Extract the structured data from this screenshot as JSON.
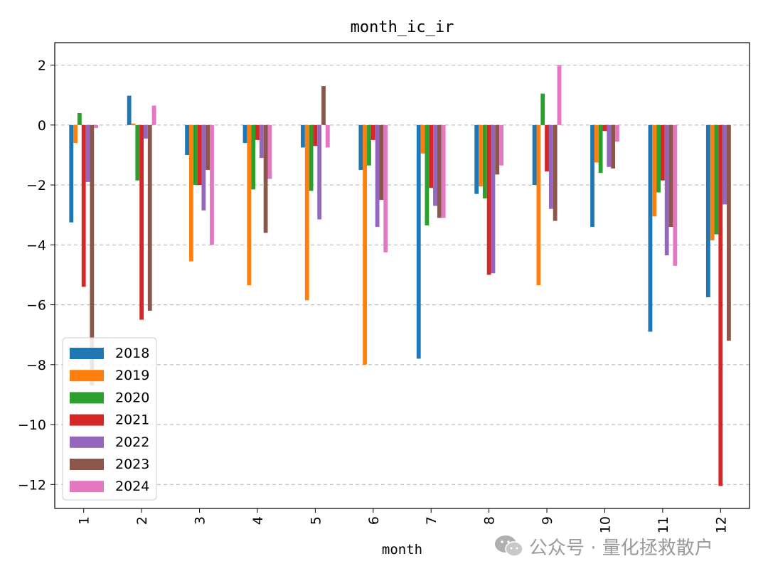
{
  "chart_data": {
    "type": "bar",
    "title": "month_ic_ir",
    "xlabel": "month",
    "ylabel": "",
    "ylim": [
      -12.8,
      2.75
    ],
    "yticks": [
      2,
      0,
      -2,
      -4,
      -6,
      -8,
      -10,
      -12
    ],
    "ytick_labels": [
      "2",
      "0",
      "−2",
      "−4",
      "−6",
      "−8",
      "−10",
      "−12"
    ],
    "categories": [
      "1",
      "2",
      "3",
      "4",
      "5",
      "6",
      "7",
      "8",
      "9",
      "10",
      "11",
      "12"
    ],
    "grid": "horizontal-dashed",
    "legend_position": "lower-left",
    "series": [
      {
        "name": "2018",
        "color": "#1f77b4",
        "values": [
          -3.25,
          0.98,
          -1.0,
          -0.6,
          -0.75,
          -1.5,
          -7.8,
          -2.3,
          -2.0,
          -3.4,
          -6.9,
          -5.75
        ]
      },
      {
        "name": "2019",
        "color": "#ff7f0e",
        "values": [
          -0.6,
          0.05,
          -4.55,
          -5.35,
          -5.85,
          -8.0,
          -0.95,
          -2.05,
          -5.35,
          -1.25,
          -3.05,
          -3.85
        ]
      },
      {
        "name": "2020",
        "color": "#2ca02c",
        "values": [
          0.4,
          -1.85,
          -2.0,
          -2.15,
          -2.2,
          -1.35,
          -3.35,
          -2.45,
          1.05,
          -1.6,
          -2.25,
          -3.65
        ]
      },
      {
        "name": "2021",
        "color": "#d62728",
        "values": [
          -5.4,
          -6.5,
          -2.0,
          -0.5,
          -0.7,
          -0.5,
          -2.1,
          -5.0,
          -1.55,
          -0.2,
          -1.85,
          -12.05
        ]
      },
      {
        "name": "2022",
        "color": "#9467bd",
        "values": [
          -1.9,
          -0.45,
          -2.85,
          -1.1,
          -3.15,
          -3.4,
          -2.7,
          -4.95,
          -2.8,
          -1.4,
          -4.35,
          -2.65
        ]
      },
      {
        "name": "2023",
        "color": "#8c564b",
        "values": [
          -8.7,
          -6.2,
          -1.5,
          -3.6,
          1.3,
          -2.5,
          -3.1,
          -1.65,
          -3.2,
          -1.45,
          -3.4,
          -7.2
        ]
      },
      {
        "name": "2024",
        "color": "#e377c2",
        "values": [
          -0.1,
          0.65,
          -4.0,
          -1.8,
          -0.75,
          -4.25,
          -3.1,
          -1.35,
          2.0,
          -0.55,
          -4.7,
          0.0
        ]
      }
    ]
  },
  "watermark": {
    "logo_icon": "wechat-icon",
    "text": "公众号 · 量化拯救散户"
  }
}
